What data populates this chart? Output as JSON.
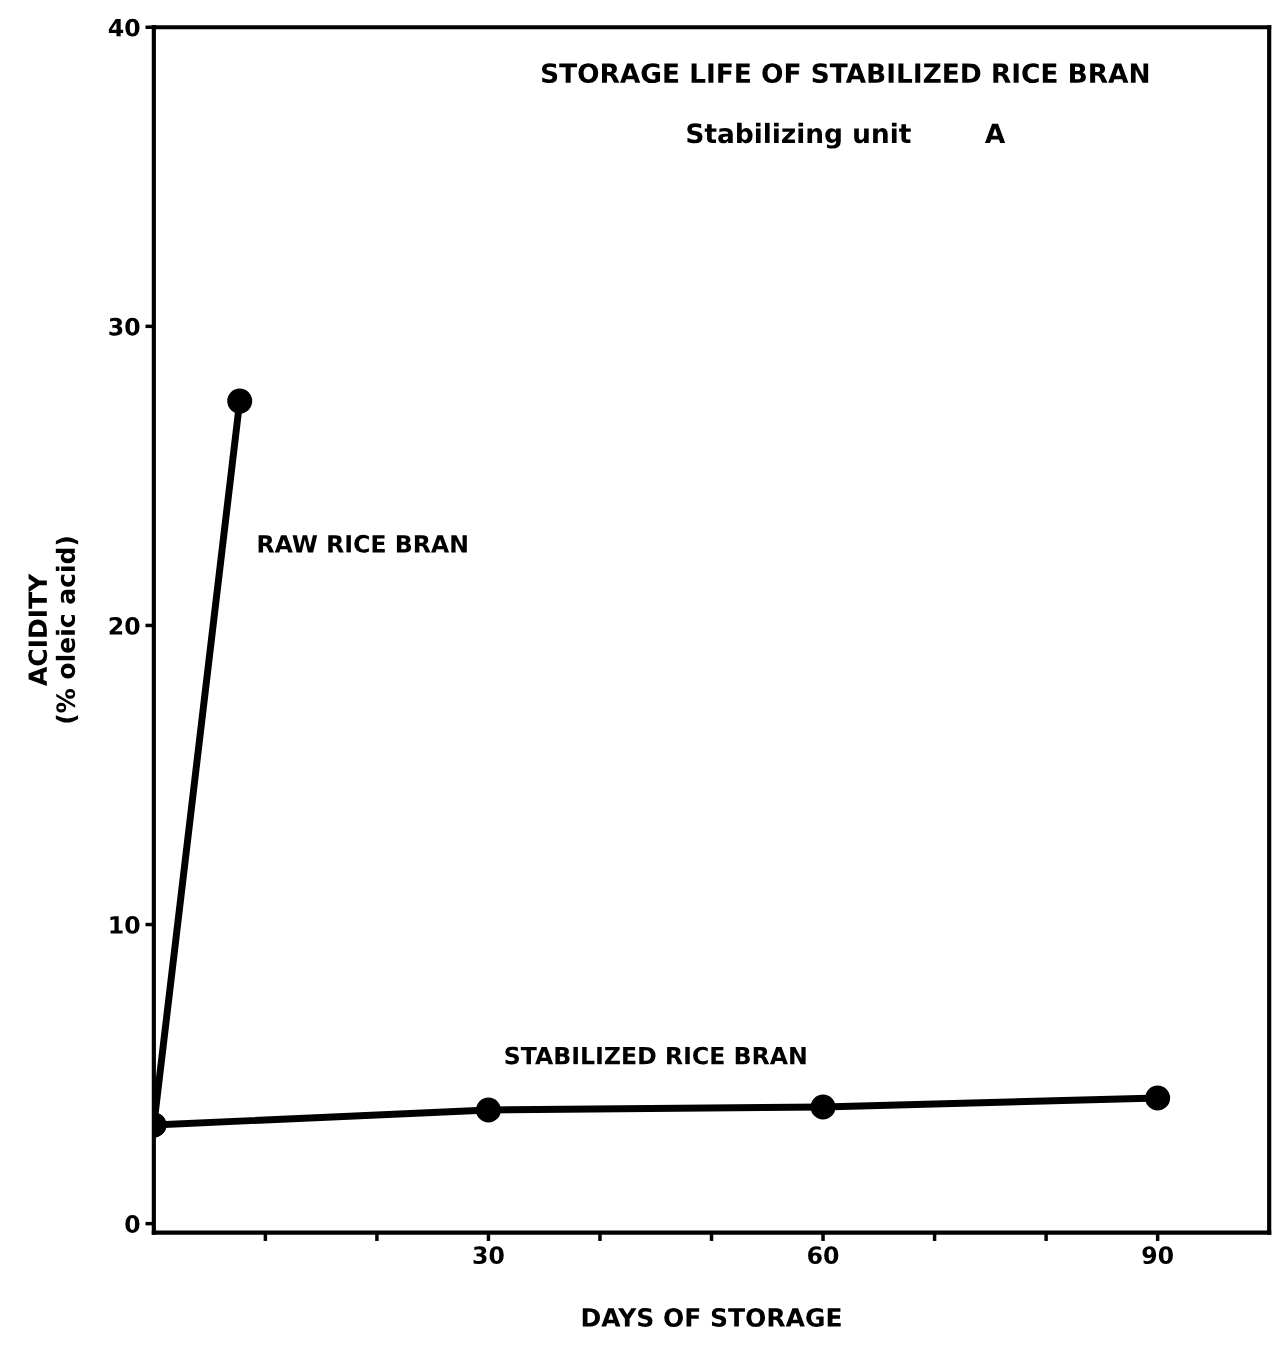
{
  "chart_data": {
    "type": "line",
    "title": "STORAGE LIFE OF STABILIZED RICE BRAN",
    "subtitle": "Stabilizing unit        A",
    "xlabel": "DAYS OF STORAGE",
    "ylabel": "ACIDITY\n(% oleic acid)",
    "series": [
      {
        "name": "RAW RICE BRAN",
        "color": "#000000",
        "x": [
          0,
          7.7
        ],
        "values": [
          3.3,
          27.5
        ]
      },
      {
        "name": "STABILIZED RICE BRAN",
        "color": "#000000",
        "x": [
          0,
          30,
          60,
          90
        ],
        "values": [
          3.3,
          3.8,
          3.9,
          4.2
        ]
      }
    ],
    "xlim": [
      0,
      100
    ],
    "ylim": [
      -0.3,
      40
    ],
    "xticks": [
      {
        "value": 10,
        "label": null
      },
      {
        "value": 20,
        "label": null
      },
      30,
      {
        "value": 40,
        "label": null
      },
      {
        "value": 50,
        "label": null
      },
      60,
      {
        "value": 70,
        "label": null
      },
      {
        "value": 80,
        "label": null
      },
      90
    ],
    "yticks": [
      0,
      10,
      20,
      30,
      40
    ],
    "marker": "circle",
    "line_style": "solid",
    "grid": false,
    "legend": false
  }
}
